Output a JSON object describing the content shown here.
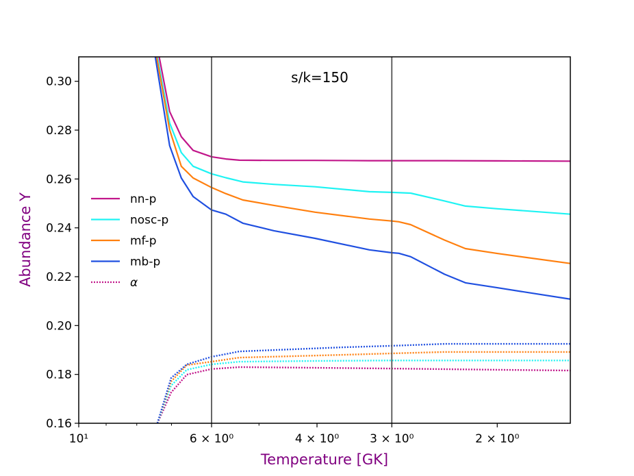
{
  "chart_data": {
    "type": "line",
    "annotation": "s/k=150",
    "xlabel": "Temperature [GK]",
    "ylabel": "Abundance Y",
    "xscale": "log",
    "xlim": [
      10,
      1.51
    ],
    "ylim": [
      0.16,
      0.31
    ],
    "x_inverted": true,
    "grid": false,
    "legend_placement": "center-left",
    "label_color": "#800080",
    "xticks": [
      {
        "value": 10,
        "label": "10¹"
      },
      {
        "value": 6,
        "label": "6 × 10⁰"
      },
      {
        "value": 4,
        "label": "4 × 10⁰"
      },
      {
        "value": 3,
        "label": "3 × 10⁰"
      },
      {
        "value": 2,
        "label": "2 × 10⁰"
      }
    ],
    "xminor": [
      9,
      8,
      7,
      5
    ],
    "yticks": [
      "0.16",
      "0.18",
      "0.20",
      "0.22",
      "0.24",
      "0.26",
      "0.28",
      "0.30"
    ],
    "vertical_lines": [
      6,
      3
    ],
    "series": [
      {
        "name": "nn-p",
        "color": "#c1168a",
        "style": "solid",
        "x": [
          7.34,
          7.05,
          6.74,
          6.44,
          6.0,
          5.68,
          5.39,
          4.72,
          4.03,
          3.27,
          3.0,
          2.45,
          2.0,
          1.51
        ],
        "y": [
          0.31,
          0.2876,
          0.2773,
          0.2717,
          0.2691,
          0.2682,
          0.2677,
          0.2676,
          0.2676,
          0.2675,
          0.2675,
          0.2675,
          0.2674,
          0.2673
        ]
      },
      {
        "name": "nosc-p",
        "color": "#1ef3f3",
        "style": "solid",
        "x": [
          7.39,
          7.05,
          6.74,
          6.44,
          6.0,
          5.68,
          5.32,
          4.72,
          4.03,
          3.27,
          3.0,
          2.79,
          2.45,
          2.26,
          2.0,
          1.51
        ],
        "y": [
          0.31,
          0.2829,
          0.2708,
          0.2652,
          0.2621,
          0.2605,
          0.2588,
          0.2578,
          0.2568,
          0.2548,
          0.2545,
          0.2542,
          0.251,
          0.2489,
          0.2478,
          0.2456
        ]
      },
      {
        "name": "mf-p",
        "color": "#ff7f0e",
        "style": "solid",
        "x": [
          7.41,
          7.05,
          6.74,
          6.44,
          6.0,
          5.68,
          5.32,
          4.72,
          4.03,
          3.27,
          3.0,
          2.92,
          2.79,
          2.45,
          2.26,
          2.0,
          1.51
        ],
        "y": [
          0.31,
          0.2801,
          0.2652,
          0.2604,
          0.2565,
          0.254,
          0.2514,
          0.2492,
          0.2464,
          0.2436,
          0.2428,
          0.2425,
          0.2413,
          0.235,
          0.2315,
          0.2295,
          0.2254
        ]
      },
      {
        "name": "mb-p",
        "color": "#1f4fe0",
        "style": "solid",
        "x": [
          7.45,
          7.05,
          6.74,
          6.44,
          6.0,
          5.68,
          5.32,
          4.72,
          4.03,
          3.27,
          3.0,
          2.92,
          2.79,
          2.45,
          2.26,
          2.0,
          1.51
        ],
        "y": [
          0.31,
          0.2736,
          0.2604,
          0.2528,
          0.2473,
          0.2456,
          0.2419,
          0.2388,
          0.2357,
          0.231,
          0.2298,
          0.2296,
          0.2282,
          0.221,
          0.2175,
          0.2155,
          0.2108
        ]
      },
      {
        "name": "α",
        "color": "#c1168a",
        "style": "dotted",
        "x": [
          7.39,
          7.01,
          6.6,
          6.0,
          5.39,
          4.03,
          3.0,
          2.0,
          1.51
        ],
        "y": [
          0.16,
          0.1726,
          0.1799,
          0.1822,
          0.183,
          0.1827,
          0.1824,
          0.1819,
          0.1816
        ]
      },
      {
        "color": "#1ef3f3",
        "style": "dotted",
        "x": [
          7.39,
          7.01,
          6.6,
          6.0,
          5.39,
          4.03,
          3.0,
          2.0,
          1.51
        ],
        "y": [
          0.16,
          0.1754,
          0.1819,
          0.1841,
          0.1852,
          0.1855,
          0.1857,
          0.1857,
          0.1857
        ]
      },
      {
        "color": "#ff7f0e",
        "style": "dotted",
        "x": [
          7.39,
          7.01,
          6.6,
          6.0,
          5.39,
          3.63,
          3.0,
          2.45,
          1.51
        ],
        "y": [
          0.16,
          0.1771,
          0.1838,
          0.1852,
          0.1869,
          0.188,
          0.1886,
          0.1892,
          0.1892
        ]
      },
      {
        "color": "#1f4fe0",
        "style": "dotted",
        "x": [
          7.39,
          7.01,
          6.6,
          6.0,
          5.39,
          3.63,
          3.0,
          2.45,
          1.51
        ],
        "y": [
          0.16,
          0.1785,
          0.1841,
          0.1872,
          0.1894,
          0.1911,
          0.1917,
          0.1925,
          0.1925
        ]
      }
    ]
  }
}
